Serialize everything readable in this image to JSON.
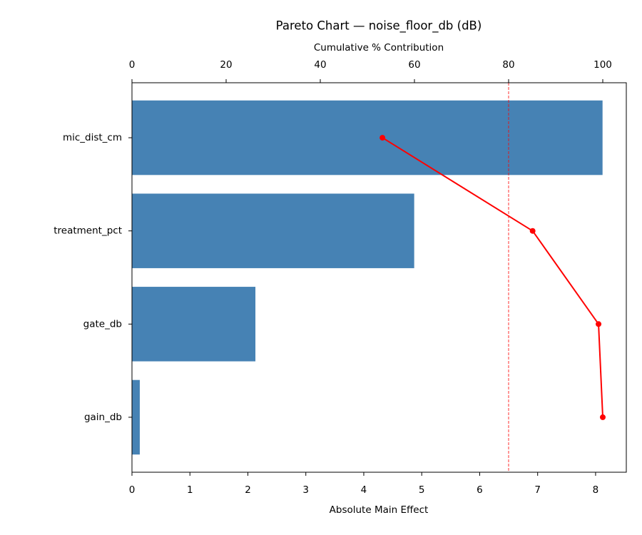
{
  "chart_data": {
    "type": "pareto",
    "title": "Pareto Chart — noise_floor_db (dB)",
    "xlabel": "Absolute Main Effect",
    "x2label": "Cumulative % Contribution",
    "categories": [
      "mic_dist_cm",
      "treatment_pct",
      "gate_db",
      "gain_db"
    ],
    "values": [
      8.12,
      4.87,
      2.13,
      0.135
    ],
    "color": "#4682b4",
    "cumulative": {
      "values": [
        53.2,
        85.1,
        99.1,
        100
      ],
      "color": "#ff0000",
      "axis": "x2"
    },
    "threshold": 80,
    "threshold_color": "#ff0000",
    "xlim": [
      0,
      8.53
    ],
    "xticks": [
      0,
      1,
      2,
      3,
      4,
      5,
      6,
      7,
      8
    ],
    "x2lim": [
      0,
      105
    ],
    "x2ticks": [
      0,
      20,
      40,
      60,
      80,
      100
    ]
  }
}
